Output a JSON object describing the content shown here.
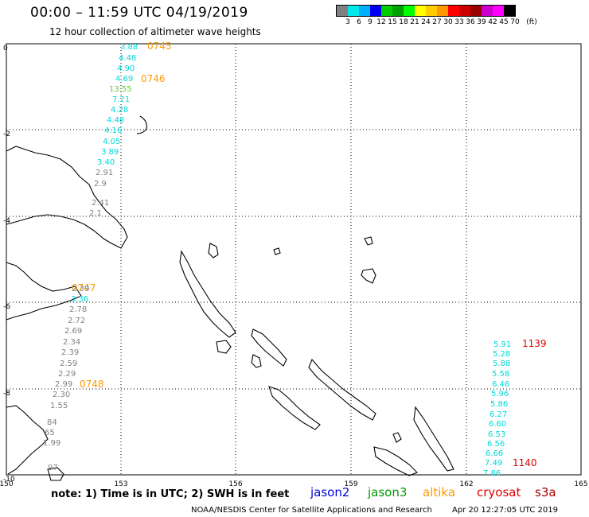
{
  "title": "00:00 – 11:59 UTC 04/19/2019",
  "subtitle": "12 hour collection of altimeter wave heights",
  "legend": {
    "unit": "(ft)",
    "colors": [
      "#808080",
      "#00e8e8",
      "#00b0ff",
      "#0000f0",
      "#00cc00",
      "#00a000",
      "#00ff00",
      "#ffff00",
      "#ffcc00",
      "#ff9900",
      "#ff0000",
      "#cc0000",
      "#990000",
      "#cc00cc",
      "#ff00ff",
      "#000000"
    ],
    "labels": [
      "3",
      "6",
      "9",
      "12",
      "15",
      "18",
      "21",
      "24",
      "27",
      "30",
      "33",
      "36",
      "39",
      "42",
      "45",
      "70"
    ]
  },
  "axes": {
    "x_ticks": [
      "150",
      "153",
      "156",
      "159",
      "162",
      "165"
    ],
    "y_ticks": [
      "0",
      "-2",
      "-4",
      "-6",
      "-8",
      "-10"
    ]
  },
  "satellites": [
    {
      "name": "jason2",
      "color": "#0000dd"
    },
    {
      "name": "jason3",
      "color": "#009900"
    },
    {
      "name": "altika",
      "color": "#ff9900"
    },
    {
      "name": "cryosat",
      "color": "#dd0000"
    },
    {
      "name": "s3a",
      "color": "#aa0000"
    }
  ],
  "note": "note:  1) Time is in UTC; 2) SWH is in feet",
  "credits": "NOAA/NESDIS Center for Satellite Applications and Research",
  "timestamp": "Apr 20 12:27:05 UTC 2019",
  "track_times": [
    {
      "text": "0745",
      "color": "#ff9900"
    },
    {
      "text": "0746",
      "color": "#ff9900"
    },
    {
      "text": "0747",
      "color": "#ff9900"
    },
    {
      "text": "0748",
      "color": "#ff9900"
    },
    {
      "text": "1139",
      "color": "#dd0000"
    },
    {
      "text": "1140",
      "color": "#dd0000"
    }
  ],
  "wave_heights": [
    {
      "text": "3.88",
      "color": "#00d8d8"
    },
    {
      "text": "4.48",
      "color": "#00d8d8"
    },
    {
      "text": "4.90",
      "color": "#00d8d8"
    },
    {
      "text": "4.69",
      "color": "#00d8d8"
    },
    {
      "text": "13.55",
      "color": "#66cc33"
    },
    {
      "text": "7.21",
      "color": "#00d8d8"
    },
    {
      "text": "4.28",
      "color": "#00d8d8"
    },
    {
      "text": "4.48",
      "color": "#00d8d8"
    },
    {
      "text": "4.16",
      "color": "#00d8d8"
    },
    {
      "text": "4.05",
      "color": "#00d8d8"
    },
    {
      "text": "3.89",
      "color": "#00d8d8"
    },
    {
      "text": "3.40",
      "color": "#00d8d8"
    },
    {
      "text": "2.91",
      "color": "#808080"
    },
    {
      "text": "2.9",
      "color": "#808080"
    },
    {
      "text": "2.41",
      "color": "#808080"
    },
    {
      "text": "2.1",
      "color": "#808080"
    },
    {
      "text": "2.39",
      "color": "#808080"
    },
    {
      "text": "3.36",
      "color": "#00d8d8"
    },
    {
      "text": "2.78",
      "color": "#808080"
    },
    {
      "text": "2.72",
      "color": "#808080"
    },
    {
      "text": "2.69",
      "color": "#808080"
    },
    {
      "text": "2.34",
      "color": "#808080"
    },
    {
      "text": "2.39",
      "color": "#808080"
    },
    {
      "text": "2.59",
      "color": "#808080"
    },
    {
      "text": "2.29",
      "color": "#808080"
    },
    {
      "text": "2.99",
      "color": "#808080"
    },
    {
      "text": "2.30",
      "color": "#808080"
    },
    {
      "text": "1.55",
      "color": "#808080"
    },
    {
      "text": "84",
      "color": "#808080"
    },
    {
      "text": "65",
      "color": "#808080"
    },
    {
      "text": "1.99",
      "color": "#808080"
    },
    {
      "text": "97",
      "color": "#808080"
    },
    {
      "text": "5.91",
      "color": "#00d8d8"
    },
    {
      "text": "5.28",
      "color": "#00d8d8"
    },
    {
      "text": "5.88",
      "color": "#00d8d8"
    },
    {
      "text": "5.58",
      "color": "#00d8d8"
    },
    {
      "text": "6.46",
      "color": "#00d8d8"
    },
    {
      "text": "5.96",
      "color": "#00d8d8"
    },
    {
      "text": "5.86",
      "color": "#00d8d8"
    },
    {
      "text": "6.27",
      "color": "#00d8d8"
    },
    {
      "text": "6.60",
      "color": "#00d8d8"
    },
    {
      "text": "6.53",
      "color": "#00d8d8"
    },
    {
      "text": "6.56",
      "color": "#00d8d8"
    },
    {
      "text": "6.66",
      "color": "#00d8d8"
    },
    {
      "text": "7.49",
      "color": "#00d8d8"
    },
    {
      "text": "7.86",
      "color": "#00d8d8"
    }
  ]
}
